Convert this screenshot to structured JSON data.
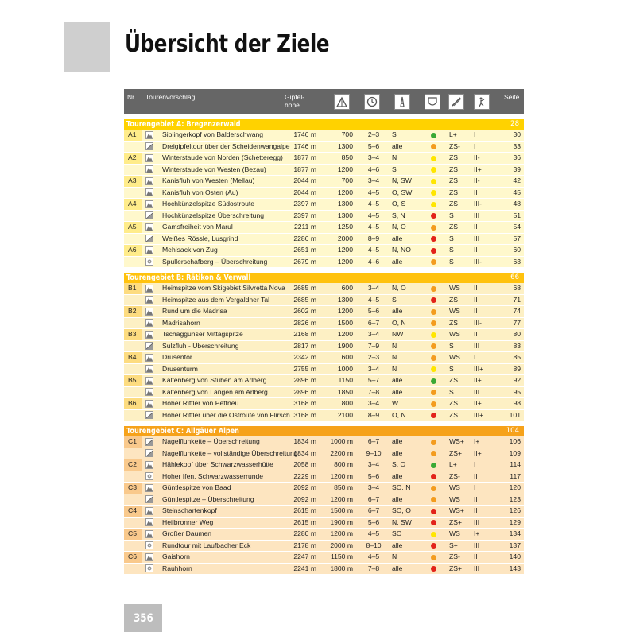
{
  "title": "Übersicht der Ziele",
  "page_number": "356",
  "header": {
    "nr": "Nr.",
    "tour": "Tourenvorschlag",
    "altitude_line1": "Gipfel-",
    "altitude_line2": "höhe",
    "icons": [
      "altitude-gain-icon",
      "clock-icon",
      "exposure-icon",
      "danger-level-icon",
      "difficulty-icon",
      "climbing-icon"
    ],
    "page": "Seite"
  },
  "colors": {
    "green": "#3aa935",
    "yellow": "#ffe600",
    "orange": "#f39c1f",
    "red": "#e2231a"
  },
  "sections": [
    {
      "title": "Tourengebiet A: Bregenzerwald",
      "page": "28",
      "rows": [
        {
          "nr": "A1",
          "icon": "mountain",
          "name": "Siplingerkopf von Balderschwang",
          "alt": "1746 m",
          "hm": "700",
          "time": "2–3",
          "exp": "S",
          "dot": "green",
          "diff": "L+",
          "climb": "I",
          "page": "30"
        },
        {
          "nr": "",
          "icon": "traverse",
          "name": "Dreigipfeltour über der Scheidenwangalpe",
          "alt": "1746 m",
          "hm": "1300",
          "time": "5–6",
          "exp": "alle",
          "dot": "orange",
          "diff": "ZS-",
          "climb": "I",
          "page": "33"
        },
        {
          "nr": "A2",
          "icon": "mountain",
          "name": "Winterstaude von Norden (Schetteregg)",
          "alt": "1877 m",
          "hm": "850",
          "time": "3–4",
          "exp": "N",
          "dot": "yellow",
          "diff": "ZS",
          "climb": "II-",
          "page": "36"
        },
        {
          "nr": "",
          "icon": "mountain",
          "name": "Winterstaude von Westen (Bezau)",
          "alt": "1877 m",
          "hm": "1200",
          "time": "4–6",
          "exp": "S",
          "dot": "yellow",
          "diff": "ZS",
          "climb": "II+",
          "page": "39"
        },
        {
          "nr": "A3",
          "icon": "mountain",
          "name": "Kanisfluh von Westen (Mellau)",
          "alt": "2044 m",
          "hm": "700",
          "time": "3–4",
          "exp": "N, SW",
          "dot": "yellow",
          "diff": "ZS",
          "climb": "II-",
          "page": "42"
        },
        {
          "nr": "",
          "icon": "mountain",
          "name": "Kanisfluh von Osten (Au)",
          "alt": "2044 m",
          "hm": "1200",
          "time": "4–5",
          "exp": "O, SW",
          "dot": "yellow",
          "diff": "ZS",
          "climb": "II",
          "page": "45"
        },
        {
          "nr": "A4",
          "icon": "mountain",
          "name": "Hochkünzelspitze Südostroute",
          "alt": "2397 m",
          "hm": "1300",
          "time": "4–5",
          "exp": "O, S",
          "dot": "yellow",
          "diff": "ZS",
          "climb": "III-",
          "page": "48"
        },
        {
          "nr": "",
          "icon": "traverse",
          "name": "Hochkünzelspitze Überschreitung",
          "alt": "2397 m",
          "hm": "1300",
          "time": "4–5",
          "exp": "S, N",
          "dot": "red",
          "diff": "S",
          "climb": "III",
          "page": "51"
        },
        {
          "nr": "A5",
          "icon": "mountain",
          "name": "Gamsfreiheit von Marul",
          "alt": "2211 m",
          "hm": "1250",
          "time": "4–5",
          "exp": "N, O",
          "dot": "orange",
          "diff": "ZS",
          "climb": "II",
          "page": "54"
        },
        {
          "nr": "",
          "icon": "traverse",
          "name": "Weißes Rössle, Lusgrind",
          "alt": "2286 m",
          "hm": "2000",
          "time": "8–9",
          "exp": "alle",
          "dot": "red",
          "diff": "S",
          "climb": "III",
          "page": "57"
        },
        {
          "nr": "A6",
          "icon": "mountain",
          "name": "Mehlsack von Zug",
          "alt": "2651 m",
          "hm": "1200",
          "time": "4–5",
          "exp": "N, NO",
          "dot": "red",
          "diff": "S",
          "climb": "II",
          "page": "60"
        },
        {
          "nr": "",
          "icon": "round",
          "name": "Spullerschafberg – Überschreitung",
          "alt": "2679 m",
          "hm": "1200",
          "time": "4–6",
          "exp": "alle",
          "dot": "orange",
          "diff": "S",
          "climb": "III-",
          "page": "63"
        }
      ]
    },
    {
      "title": "Tourengebiet B: Rätikon & Verwall",
      "page": "66",
      "rows": [
        {
          "nr": "B1",
          "icon": "mountain",
          "name": "Heimspitze vom Skigebiet Silvretta Nova",
          "alt": "2685 m",
          "hm": "600",
          "time": "3–4",
          "exp": "N, O",
          "dot": "orange",
          "diff": "WS",
          "climb": "II",
          "page": "68"
        },
        {
          "nr": "",
          "icon": "mountain",
          "name": "Heimspitze aus dem Vergaldner Tal",
          "alt": "2685 m",
          "hm": "1300",
          "time": "4–5",
          "exp": "S",
          "dot": "red",
          "diff": "ZS",
          "climb": "II",
          "page": "71"
        },
        {
          "nr": "B2",
          "icon": "mountain",
          "name": "Rund um die Madrisa",
          "alt": "2602 m",
          "hm": "1200",
          "time": "5–6",
          "exp": "alle",
          "dot": "orange",
          "diff": "WS",
          "climb": "II",
          "page": "74"
        },
        {
          "nr": "",
          "icon": "mountain",
          "name": "Madrisahorn",
          "alt": "2826 m",
          "hm": "1500",
          "time": "6–7",
          "exp": "O, N",
          "dot": "orange",
          "diff": "ZS",
          "climb": "III-",
          "page": "77"
        },
        {
          "nr": "B3",
          "icon": "mountain",
          "name": "Tschaggunser Mittagspitze",
          "alt": "2168 m",
          "hm": "1200",
          "time": "3–4",
          "exp": "NW",
          "dot": "yellow",
          "diff": "WS",
          "climb": "II",
          "page": "80"
        },
        {
          "nr": "",
          "icon": "traverse",
          "name": "Sulzfluh - Überschreitung",
          "alt": "2817 m",
          "hm": "1900",
          "time": "7–9",
          "exp": "N",
          "dot": "orange",
          "diff": "S",
          "climb": "III",
          "page": "83"
        },
        {
          "nr": "B4",
          "icon": "mountain",
          "name": "Drusentor",
          "alt": "2342 m",
          "hm": "600",
          "time": "2–3",
          "exp": "N",
          "dot": "orange",
          "diff": "WS",
          "climb": "I",
          "page": "85"
        },
        {
          "nr": "",
          "icon": "mountain",
          "name": "Drusenturm",
          "alt": "2755 m",
          "hm": "1000",
          "time": "3–4",
          "exp": "N",
          "dot": "yellow",
          "diff": "S",
          "climb": "III+",
          "page": "89"
        },
        {
          "nr": "B5",
          "icon": "mountain",
          "name": "Kaltenberg von Stuben am Arlberg",
          "alt": "2896 m",
          "hm": "1150",
          "time": "5–7",
          "exp": "alle",
          "dot": "green",
          "diff": "ZS",
          "climb": "II+",
          "page": "92"
        },
        {
          "nr": "",
          "icon": "mountain",
          "name": "Kaltenberg von Langen am Arlberg",
          "alt": "2896 m",
          "hm": "1850",
          "time": "7–8",
          "exp": "alle",
          "dot": "orange",
          "diff": "S",
          "climb": "III",
          "page": "95"
        },
        {
          "nr": "B6",
          "icon": "mountain",
          "name": "Hoher Riffler von Pettneu",
          "alt": "3168 m",
          "hm": "800",
          "time": "3–4",
          "exp": "W",
          "dot": "orange",
          "diff": "ZS",
          "climb": "II+",
          "page": "98"
        },
        {
          "nr": "",
          "icon": "traverse",
          "name": "Hoher Riffler über die Ostroute von Flirsch",
          "alt": "3168 m",
          "hm": "2100",
          "time": "8–9",
          "exp": "O, N",
          "dot": "red",
          "diff": "ZS",
          "climb": "III+",
          "page": "101"
        }
      ]
    },
    {
      "title": "Tourengebiet C: Allgäuer Alpen",
      "page": "104",
      "rows": [
        {
          "nr": "C1",
          "icon": "traverse",
          "name": "Nagelfluhkette – Überschreitung",
          "alt": "1834 m",
          "hm": "1000 m",
          "time": "6–7",
          "exp": "alle",
          "dot": "orange",
          "diff": "WS+",
          "climb": "I+",
          "page": "106"
        },
        {
          "nr": "",
          "icon": "traverse",
          "name": "Nagelfluhkette – vollständige Überschreitung",
          "alt": "1834 m",
          "hm": "2200 m",
          "time": "9–10",
          "exp": "alle",
          "dot": "orange",
          "diff": "ZS+",
          "climb": "II+",
          "page": "109"
        },
        {
          "nr": "C2",
          "icon": "mountain",
          "name": "Hählekopf über Schwarzwasserhütte",
          "alt": "2058 m",
          "hm": "800 m",
          "time": "3–4",
          "exp": "S, O",
          "dot": "green",
          "diff": "L+",
          "climb": "I",
          "page": "114"
        },
        {
          "nr": "",
          "icon": "round",
          "name": "Hoher Ifen, Schwarzwasserrunde",
          "alt": "2229 m",
          "hm": "1200 m",
          "time": "5–6",
          "exp": "alle",
          "dot": "red",
          "diff": "ZS-",
          "climb": "II",
          "page": "117"
        },
        {
          "nr": "C3",
          "icon": "mountain",
          "name": "Güntlespitze von Baad",
          "alt": "2092 m",
          "hm": "850 m",
          "time": "3–4",
          "exp": "SO, N",
          "dot": "orange",
          "diff": "WS",
          "climb": "I",
          "page": "120"
        },
        {
          "nr": "",
          "icon": "traverse",
          "name": "Güntlespitze – Überschreitung",
          "alt": "2092 m",
          "hm": "1200 m",
          "time": "6–7",
          "exp": "alle",
          "dot": "orange",
          "diff": "WS",
          "climb": "II",
          "page": "123"
        },
        {
          "nr": "C4",
          "icon": "mountain",
          "name": "Steinschartenkopf",
          "alt": "2615 m",
          "hm": "1500 m",
          "time": "6–7",
          "exp": "SO, O",
          "dot": "red",
          "diff": "WS+",
          "climb": "II",
          "page": "126"
        },
        {
          "nr": "",
          "icon": "mountain",
          "name": "Heilbronner Weg",
          "alt": "2615 m",
          "hm": "1900 m",
          "time": "5–6",
          "exp": "N, SW",
          "dot": "red",
          "diff": "ZS+",
          "climb": "III",
          "page": "129"
        },
        {
          "nr": "C5",
          "icon": "mountain",
          "name": "Großer Daumen",
          "alt": "2280 m",
          "hm": "1200 m",
          "time": "4–5",
          "exp": "SO",
          "dot": "yellow",
          "diff": "WS",
          "climb": "I+",
          "page": "134"
        },
        {
          "nr": "",
          "icon": "round",
          "name": "Rundtour mit Laufbacher Eck",
          "alt": "2178 m",
          "hm": "2000 m",
          "time": "8–10",
          "exp": "alle",
          "dot": "red",
          "diff": "S+",
          "climb": "III",
          "page": "137"
        },
        {
          "nr": "C6",
          "icon": "mountain",
          "name": "Gaishorn",
          "alt": "2247 m",
          "hm": "1150 m",
          "time": "4–5",
          "exp": "N",
          "dot": "orange",
          "diff": "ZS-",
          "climb": "II",
          "page": "140"
        },
        {
          "nr": "",
          "icon": "round",
          "name": "Rauhhorn",
          "alt": "2241 m",
          "hm": "1800 m",
          "time": "7–8",
          "exp": "alle",
          "dot": "red",
          "diff": "ZS+",
          "climb": "III",
          "page": "143"
        }
      ]
    }
  ]
}
